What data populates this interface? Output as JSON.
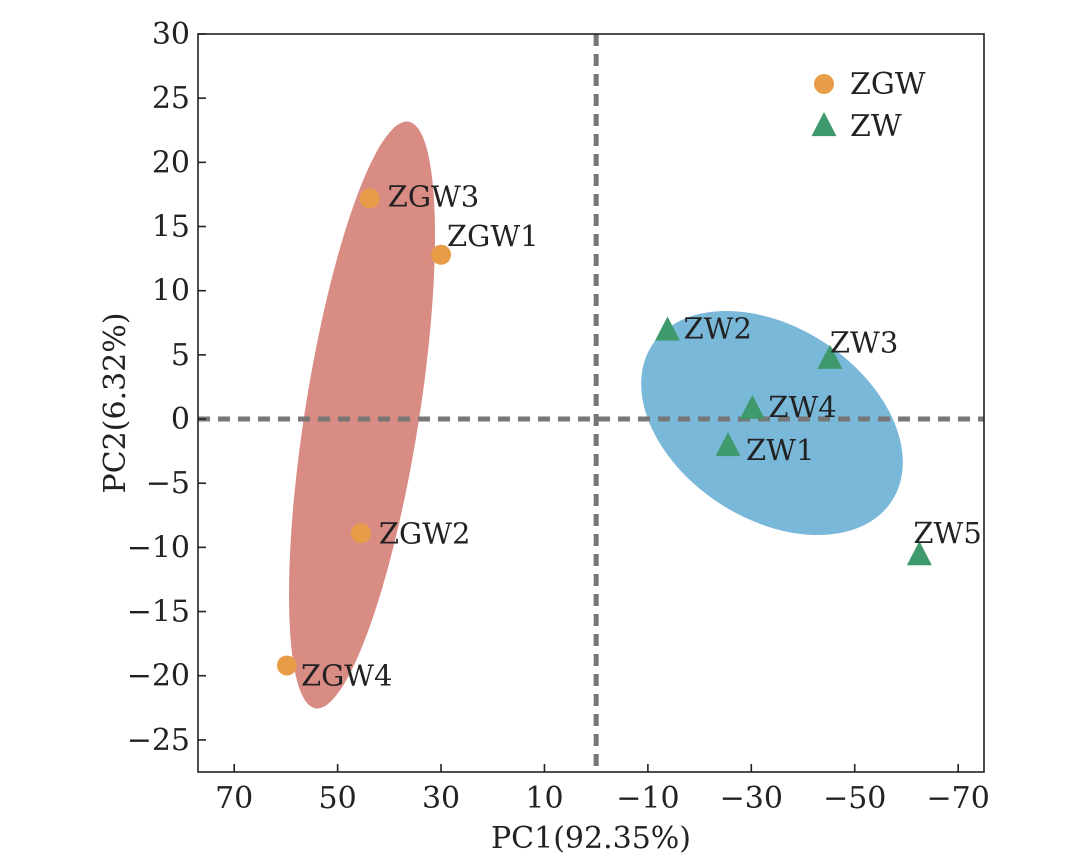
{
  "chart_data": {
    "type": "scatter",
    "title": "",
    "xlabel": "PC1(92.35%)",
    "ylabel": "PC2(6.32%)",
    "xlim": [
      77,
      -75
    ],
    "ylim": [
      -27.5,
      30
    ],
    "x_reversed": true,
    "x_ticks": [
      70,
      50,
      30,
      10,
      -10,
      -30,
      -50,
      -70
    ],
    "x_tick_labels": [
      "70",
      "50",
      "30",
      "10",
      "−10",
      "−30",
      "−50",
      "−70"
    ],
    "y_ticks": [
      30,
      25,
      20,
      15,
      10,
      5,
      0,
      -5,
      -10,
      -15,
      -20,
      -25
    ],
    "y_tick_labels": [
      "30",
      "25",
      "20",
      "15",
      "10",
      "5",
      "0",
      "−5",
      "−10",
      "−15",
      "−20",
      "−25"
    ],
    "reference_lines": {
      "x": 0,
      "y": 0,
      "style": "dashed"
    },
    "legend_position": "top-right",
    "series": [
      {
        "name": "ZGW",
        "marker": "circle",
        "color": "#E99C47",
        "ellipse_color": "#D98C84",
        "points": [
          {
            "label": "ZGW1",
            "x": 30,
            "y": 12.8
          },
          {
            "label": "ZGW2",
            "x": 45.5,
            "y": -8.9
          },
          {
            "label": "ZGW3",
            "x": 43.8,
            "y": 17.2
          },
          {
            "label": "ZGW4",
            "x": 59.8,
            "y": -19.2
          }
        ]
      },
      {
        "name": "ZW",
        "marker": "triangle",
        "color": "#3E9A6C",
        "ellipse_color": "#7AB8DA",
        "points": [
          {
            "label": "ZW1",
            "x": -25.5,
            "y": -2.1
          },
          {
            "label": "ZW2",
            "x": -13.8,
            "y": 6.9
          },
          {
            "label": "ZW3",
            "x": -45.2,
            "y": 4.7
          },
          {
            "label": "ZW4",
            "x": -30.2,
            "y": 0.8
          },
          {
            "label": "ZW5",
            "x": -62.5,
            "y": -10.6
          }
        ]
      }
    ]
  }
}
